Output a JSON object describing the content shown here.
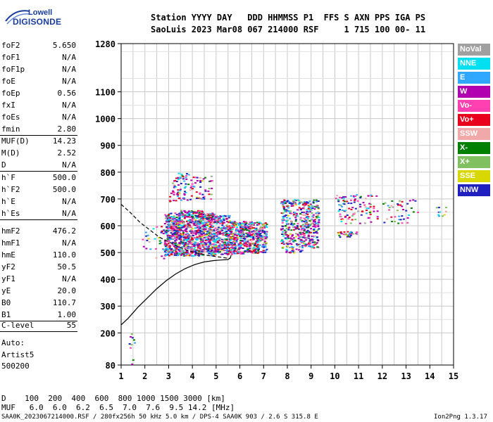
{
  "logo": {
    "line1": "Lowell",
    "line2": "DIGISONDE"
  },
  "header": {
    "line1": "Station YYYY DAY   DDD HHMMSS P1  FFS S AXN PPS IGA PS",
    "line2": "SaoLuis 2023 Mar08 067 214000 RSF     1 715 100 00- 11"
  },
  "params": {
    "group1": [
      {
        "k": "foF2",
        "v": "5.650"
      },
      {
        "k": "foF1",
        "v": "N/A"
      },
      {
        "k": "foF1p",
        "v": "N/A"
      },
      {
        "k": "foE",
        "v": "N/A"
      },
      {
        "k": "foEp",
        "v": "0.56"
      },
      {
        "k": "fxI",
        "v": "N/A"
      },
      {
        "k": "foEs",
        "v": "N/A"
      },
      {
        "k": "fmin",
        "v": "2.80"
      }
    ],
    "group2": [
      {
        "k": "MUF(D)",
        "v": "14.23"
      },
      {
        "k": "M(D)",
        "v": "2.52"
      },
      {
        "k": "D",
        "v": "N/A"
      }
    ],
    "group3": [
      {
        "k": "h`F",
        "v": "500.0"
      },
      {
        "k": "h`F2",
        "v": "500.0"
      },
      {
        "k": "h`E",
        "v": "N/A"
      },
      {
        "k": "h`Es",
        "v": "N/A"
      }
    ],
    "group4": [
      {
        "k": "hmF2",
        "v": "476.2"
      },
      {
        "k": "hmF1",
        "v": "N/A"
      },
      {
        "k": "hmE",
        "v": "110.0"
      },
      {
        "k": "yF2",
        "v": "50.5"
      },
      {
        "k": "yF1",
        "v": "N/A"
      },
      {
        "k": "yE",
        "v": "20.0"
      },
      {
        "k": "B0",
        "v": "110.7"
      },
      {
        "k": "B1",
        "v": "1.00"
      }
    ],
    "group5": [
      {
        "k": "C-level",
        "v": "55"
      }
    ]
  },
  "auto": {
    "line1": "Auto:",
    "line2": "Artist5",
    "line3": "500200"
  },
  "legend": [
    {
      "label": "NoVal",
      "color": "#a0a0a0"
    },
    {
      "label": "NNE",
      "color": "#00e0f0"
    },
    {
      "label": "E",
      "color": "#30a8ff"
    },
    {
      "label": "W",
      "color": "#b000b0"
    },
    {
      "label": "Vo-",
      "color": "#ff40b0"
    },
    {
      "label": "Vo+",
      "color": "#e8001c"
    },
    {
      "label": "SSW",
      "color": "#f0a8a8"
    },
    {
      "label": "X-",
      "color": "#008000"
    },
    {
      "label": "X+",
      "color": "#80c060"
    },
    {
      "label": "SSE",
      "color": "#d8d800"
    },
    {
      "label": "NNW",
      "color": "#2020c0"
    }
  ],
  "footer": {
    "row1": "D    100  200  400  600  800 1000 1500 3000 [km]",
    "row2": "MUF   6.0  6.0  6.2  6.5  7.0  7.6  9.5 14.2 [MHz]",
    "file": "SAA0K_2023067214000.RSF / 280fx256h 50 kHz 5.0 km / DPS-4 SAA0K 903 / 2.6 S 315.8 E",
    "version": "Ion2Png 1.3.17"
  },
  "chart_data": {
    "type": "scatter",
    "title": "",
    "xlabel": "",
    "ylabel": "",
    "xlim": [
      1,
      15
    ],
    "ylim": [
      80,
      1280
    ],
    "x_ticks": [
      1,
      2,
      3,
      4,
      5,
      6,
      7,
      8,
      9,
      10,
      11,
      12,
      13,
      14,
      15
    ],
    "y_ticks": [
      80,
      200,
      300,
      400,
      500,
      600,
      700,
      800,
      900,
      1000,
      1100,
      1280
    ],
    "grid": true,
    "point_clusters": [
      {
        "x_range": [
          2.8,
          3.35
        ],
        "y_range": [
          490,
          650
        ],
        "n": 260
      },
      {
        "x_range": [
          3.35,
          3.9
        ],
        "y_range": [
          490,
          660
        ],
        "n": 280
      },
      {
        "x_range": [
          3.9,
          4.45
        ],
        "y_range": [
          490,
          660
        ],
        "n": 280
      },
      {
        "x_range": [
          4.45,
          5.0
        ],
        "y_range": [
          490,
          650
        ],
        "n": 260
      },
      {
        "x_range": [
          5.0,
          5.6
        ],
        "y_range": [
          495,
          640
        ],
        "n": 220
      },
      {
        "x_range": [
          5.6,
          6.15
        ],
        "y_range": [
          495,
          620
        ],
        "n": 190
      },
      {
        "x_range": [
          6.15,
          6.7
        ],
        "y_range": [
          500,
          620
        ],
        "n": 170
      },
      {
        "x_range": [
          6.7,
          7.1
        ],
        "y_range": [
          500,
          620
        ],
        "n": 120
      },
      {
        "x_range": [
          7.7,
          8.6
        ],
        "y_range": [
          500,
          700
        ],
        "n": 250
      },
      {
        "x_range": [
          8.6,
          9.3
        ],
        "y_range": [
          520,
          700
        ],
        "n": 220
      },
      {
        "x_range": [
          3.0,
          3.9
        ],
        "y_range": [
          690,
          800
        ],
        "n": 70
      },
      {
        "x_range": [
          3.9,
          4.8
        ],
        "y_range": [
          700,
          790
        ],
        "n": 45
      },
      {
        "x_range": [
          10.0,
          11.8
        ],
        "y_range": [
          610,
          720
        ],
        "n": 100
      },
      {
        "x_range": [
          10.0,
          10.9
        ],
        "y_range": [
          560,
          580
        ],
        "n": 30
      },
      {
        "x_range": [
          12.0,
          13.5
        ],
        "y_range": [
          610,
          700
        ],
        "n": 40
      },
      {
        "x_range": [
          14.2,
          14.7
        ],
        "y_range": [
          630,
          680
        ],
        "n": 10
      },
      {
        "x_range": [
          1.8,
          2.8
        ],
        "y_range": [
          480,
          600
        ],
        "n": 30
      },
      {
        "x_range": [
          1.3,
          1.6
        ],
        "y_range": [
          80,
          200
        ],
        "n": 10
      }
    ],
    "curves": [
      {
        "name": "",
        "style": "solid",
        "points": [
          [
            1.0,
            230
          ],
          [
            1.3,
            255
          ],
          [
            1.7,
            295
          ],
          [
            2.1,
            330
          ],
          [
            2.5,
            365
          ],
          [
            2.9,
            395
          ],
          [
            3.3,
            420
          ],
          [
            3.7,
            440
          ],
          [
            4.1,
            455
          ],
          [
            4.5,
            465
          ],
          [
            4.9,
            470
          ],
          [
            5.2,
            472
          ],
          [
            5.5,
            474
          ],
          [
            5.6,
            480
          ],
          [
            5.63,
            490
          ]
        ]
      },
      {
        "name": "",
        "style": "dashed",
        "points": [
          [
            1.0,
            680
          ],
          [
            1.4,
            648
          ],
          [
            1.8,
            612
          ],
          [
            2.2,
            585
          ],
          [
            2.6,
            558
          ],
          [
            3.0,
            540
          ],
          [
            3.4,
            522
          ],
          [
            3.8,
            508
          ],
          [
            4.2,
            498
          ],
          [
            4.6,
            490
          ],
          [
            5.0,
            485
          ],
          [
            5.4,
            480
          ],
          [
            5.6,
            478
          ]
        ]
      }
    ]
  }
}
